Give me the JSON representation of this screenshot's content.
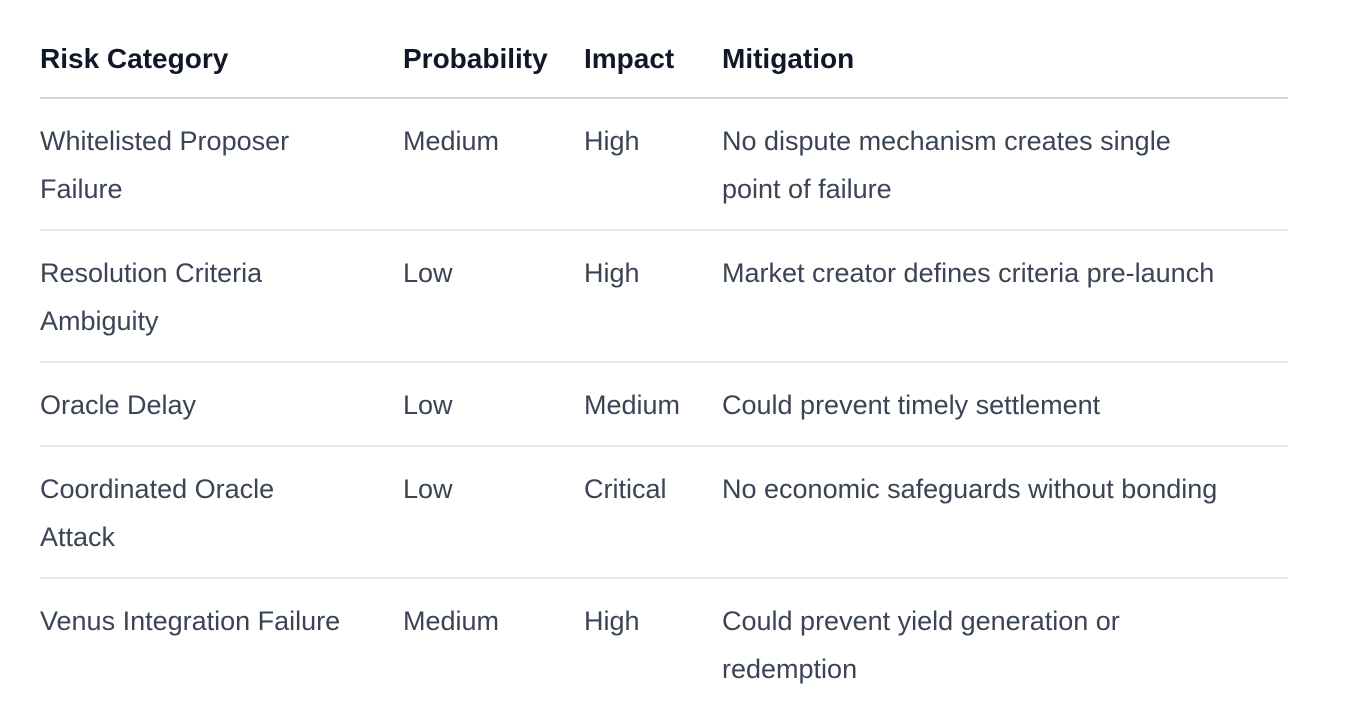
{
  "colors": {
    "background": "#ffffff",
    "header_text": "#101828",
    "body_text": "#3b4454",
    "header_border": "#d1d6dc",
    "row_border": "#e6e6ec"
  },
  "table": {
    "columns": {
      "risk": "Risk Category",
      "probability": "Probability",
      "impact": "Impact",
      "mitigation": "Mitigation"
    },
    "rows": [
      {
        "risk": "Whitelisted Proposer\nFailure",
        "probability": "Medium",
        "impact": "High",
        "mitigation": "No dispute mechanism creates single\npoint of failure"
      },
      {
        "risk": "Resolution Criteria\nAmbiguity",
        "probability": "Low",
        "impact": "High",
        "mitigation": "Market creator defines criteria pre-launch"
      },
      {
        "risk": "Oracle Delay",
        "probability": "Low",
        "impact": "Medium",
        "mitigation": "Could prevent timely settlement"
      },
      {
        "risk": "Coordinated Oracle\nAttack",
        "probability": "Low",
        "impact": "Critical",
        "mitigation": "No economic safeguards without bonding"
      },
      {
        "risk": "Venus Integration Failure",
        "probability": "Medium",
        "impact": "High",
        "mitigation": "Could prevent yield generation or\nredemption"
      }
    ]
  }
}
